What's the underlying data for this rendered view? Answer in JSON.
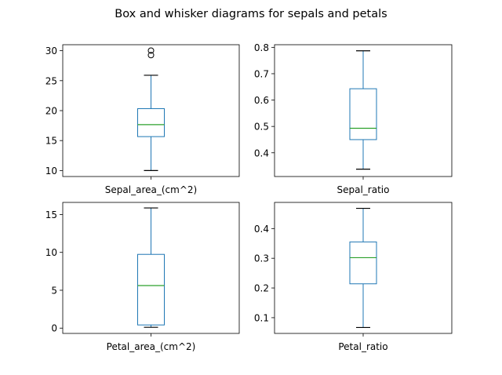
{
  "title": "Box and whisker diagrams for sepals and petals",
  "colors": {
    "box": "#1f77b4",
    "median": "#2ca02c",
    "axis": "#000000"
  },
  "chart_data": [
    {
      "type": "box",
      "xlabel": "Sepal_area_(cm^2)",
      "ylim": [
        9.0,
        31.0
      ],
      "yticks": [
        10,
        15,
        20,
        25,
        30
      ],
      "box": {
        "whisker_low": 10.0,
        "q1": 15.66,
        "median": 17.66,
        "q3": 20.33,
        "whisker_high": 25.9
      },
      "outliers": [
        29.26,
        30.02
      ]
    },
    {
      "type": "box",
      "xlabel": "Sepal_ratio",
      "ylim": [
        0.31,
        0.81
      ],
      "yticks": [
        0.4,
        0.5,
        0.6,
        0.7,
        0.8
      ],
      "box": {
        "whisker_low": 0.338,
        "q1": 0.45,
        "median": 0.493,
        "q3": 0.643,
        "whisker_high": 0.787
      },
      "outliers": []
    },
    {
      "type": "box",
      "xlabel": "Petal_area_(cm^2)",
      "ylim": [
        -0.7,
        16.6
      ],
      "yticks": [
        0,
        5,
        10,
        15
      ],
      "box": {
        "whisker_low": 0.11,
        "q1": 0.42,
        "median": 5.62,
        "q3": 9.74,
        "whisker_high": 15.87
      },
      "outliers": []
    },
    {
      "type": "box",
      "xlabel": "Petal_ratio",
      "ylim": [
        0.047,
        0.488
      ],
      "yticks": [
        0.1,
        0.2,
        0.3,
        0.4
      ],
      "box": {
        "whisker_low": 0.067,
        "q1": 0.214,
        "median": 0.302,
        "q3": 0.355,
        "whisker_high": 0.468
      },
      "outliers": []
    }
  ]
}
